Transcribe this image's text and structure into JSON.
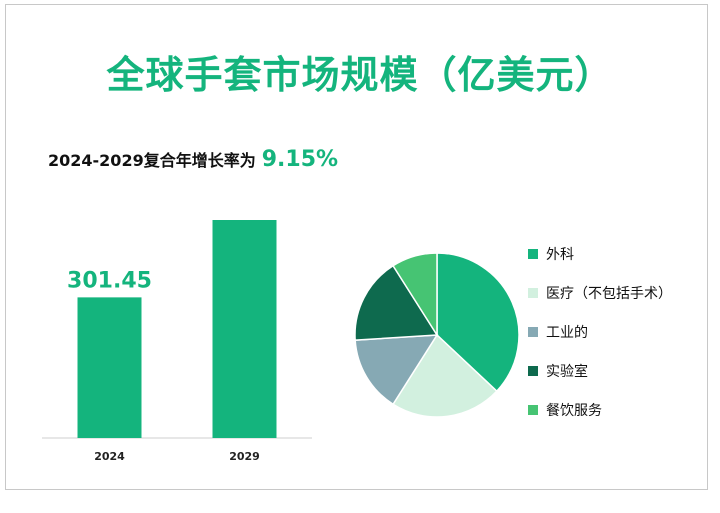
{
  "title": "全球手套市场规模（亿美元）",
  "cagr": {
    "label": "2024-2029复合年增长率为",
    "value": "9.15%"
  },
  "colors": {
    "accent": "#14b47d",
    "bar": "#14b47d"
  },
  "chart_data": [
    {
      "type": "bar",
      "categories": [
        "2024",
        "2029"
      ],
      "values": [
        301.45,
        467.3
      ],
      "data_labels": [
        "301.45",
        ""
      ],
      "title": "全球手套市场规模（亿美元）",
      "xlabel": "",
      "ylabel": ""
    },
    {
      "type": "pie",
      "labels": [
        "外科",
        "医疗（不包括手术）",
        "工业的",
        "实验室",
        "餐饮服务"
      ],
      "values": [
        37,
        22,
        15,
        17,
        9
      ],
      "colors": [
        "#14b47d",
        "#d2f0df",
        "#86a9b4",
        "#0e6a4e",
        "#46c473"
      ],
      "legend": "right"
    }
  ]
}
